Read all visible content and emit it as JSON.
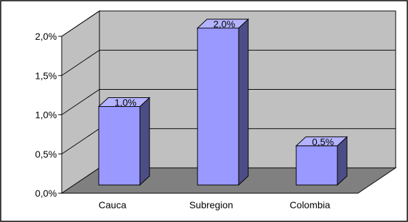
{
  "chart_data": {
    "type": "bar",
    "style": "3d-column",
    "categories": [
      "Cauca",
      "Subregion",
      "Colombia"
    ],
    "values": [
      1.0,
      2.0,
      0.5
    ],
    "data_labels": [
      "1,0%",
      "2,0%",
      "0,5%"
    ],
    "y_ticks": [
      "0,0%",
      "0,5%",
      "1,0%",
      "1,5%",
      "2,0%"
    ],
    "ylim": [
      0,
      2.0
    ],
    "grid": true,
    "legend": "none",
    "colors": {
      "bar_front": "#9999ff",
      "bar_side": "#4d4d85",
      "bar_top": "#b3b3ff",
      "wall": "#c0c0c0",
      "floor": "#808080"
    }
  }
}
